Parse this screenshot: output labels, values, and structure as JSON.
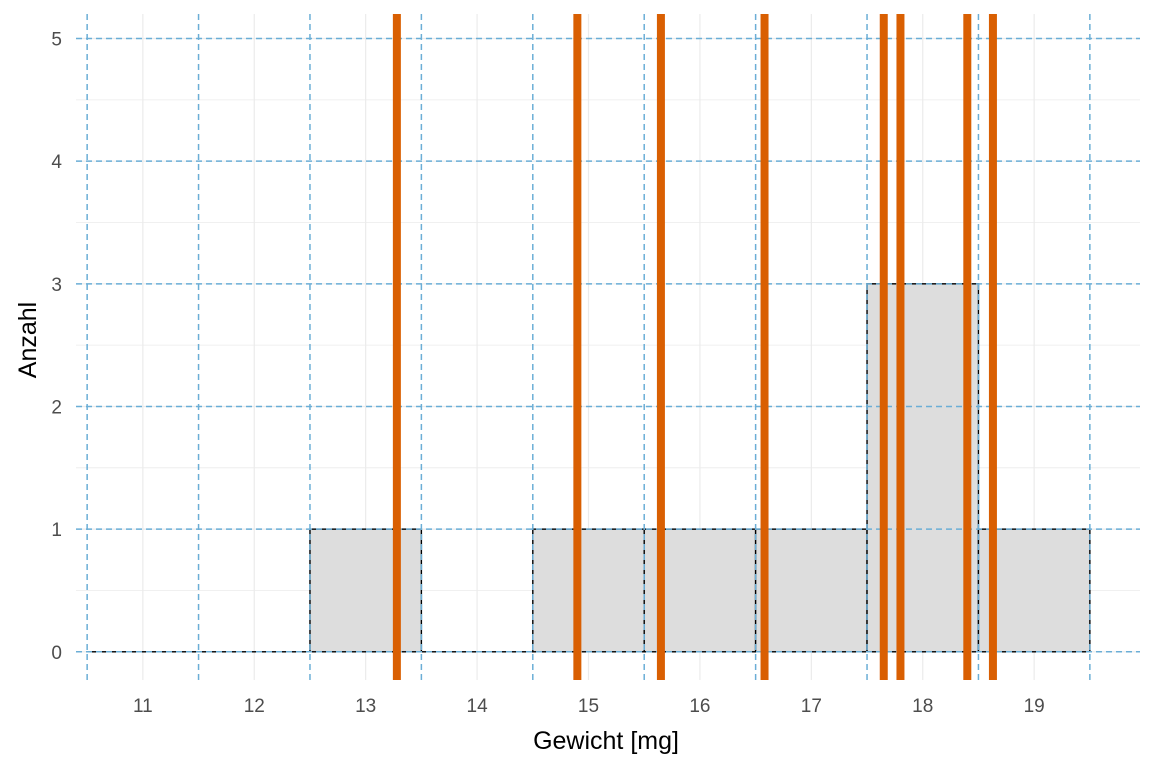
{
  "chart_data": {
    "type": "bar",
    "xlabel": "Gewicht [mg]",
    "ylabel": "Anzahl",
    "xlim": [
      10.4,
      19.95
    ],
    "ylim": [
      -0.23,
      5.2
    ],
    "x_ticks": [
      "11",
      "12",
      "13",
      "14",
      "15",
      "16",
      "17",
      "18",
      "19"
    ],
    "y_ticks": [
      "0",
      "1",
      "2",
      "3",
      "4",
      "5"
    ],
    "bin_width": 1,
    "bins": [
      {
        "x": 11,
        "count": 0
      },
      {
        "x": 12,
        "count": 0
      },
      {
        "x": 13,
        "count": 1
      },
      {
        "x": 14,
        "count": 0
      },
      {
        "x": 15,
        "count": 1
      },
      {
        "x": 16,
        "count": 1
      },
      {
        "x": 17,
        "count": 1
      },
      {
        "x": 18,
        "count": 3
      },
      {
        "x": 19,
        "count": 1
      }
    ],
    "observations": [
      13.28,
      14.9,
      15.65,
      16.58,
      17.65,
      17.8,
      18.4,
      18.63
    ],
    "bin_boundaries": [
      10.5,
      11.5,
      12.5,
      13.5,
      14.5,
      15.5,
      16.5,
      17.5,
      18.5,
      19.5
    ],
    "grid": true,
    "colors": {
      "bar_fill": "#dddddd",
      "bar_stroke": "#000000",
      "observation_line": "#d95f02",
      "reference_line": "#6baed6",
      "grid": "#ebebeb"
    }
  }
}
